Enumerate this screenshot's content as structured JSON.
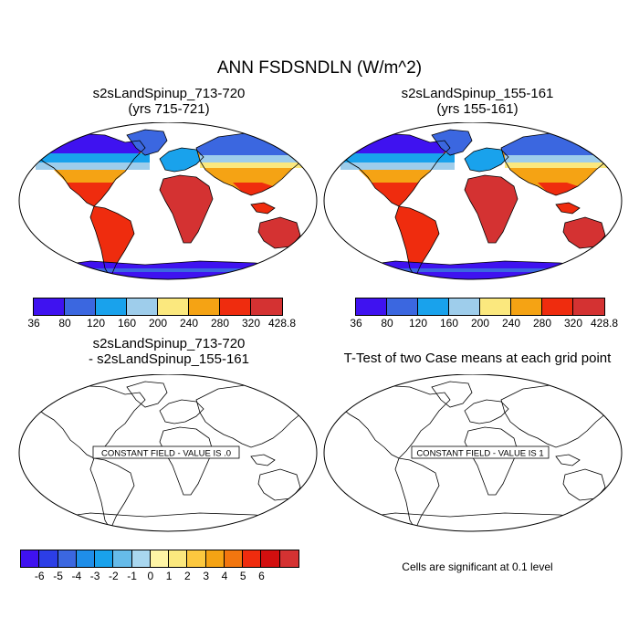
{
  "main_title": "ANN FSDSNDLN (W/m^2)",
  "panels": [
    {
      "title_line1": "s2sLandSpinup_713-720",
      "title_line2": "(yrs 715-721)"
    },
    {
      "title_line1": "s2sLandSpinup_155-161",
      "title_line2": "(yrs 155-161)"
    },
    {
      "title_line1": "s2sLandSpinup_713-720",
      "title_line2": "- s2sLandSpinup_155-161",
      "annotation": "CONSTANT FIELD - VALUE IS .0"
    },
    {
      "title_line1": "T-Test of two Case means at each grid point",
      "annotation": "CONSTANT FIELD - VALUE IS 1"
    }
  ],
  "colorbar_top": {
    "labels": [
      "36",
      "80",
      "120",
      "160",
      "200",
      "240",
      "280",
      "320",
      "428.8"
    ],
    "colors": [
      "#3f12f0",
      "#3b67e0",
      "#19a2ec",
      "#9ecdeb",
      "#fbe87e",
      "#f5a314",
      "#ef2c0e",
      "#d43232"
    ]
  },
  "colorbar_bottom": {
    "labels": [
      "-6",
      "-5",
      "-4",
      "-3",
      "-2",
      "-1",
      "0",
      "1",
      "2",
      "3",
      "4",
      "5",
      "6"
    ],
    "colors": [
      "#3f12f0",
      "#2c3ee6",
      "#3b67e0",
      "#1f8ee8",
      "#19a2ec",
      "#66bbe9",
      "#a9d7ef",
      "#fff5a6",
      "#fbe87e",
      "#fcc83f",
      "#f5a314",
      "#f2760f",
      "#ef2c0e",
      "#d20f0f",
      "#d43232"
    ]
  },
  "significance_note": "Cells are significant at 0.1 level"
}
